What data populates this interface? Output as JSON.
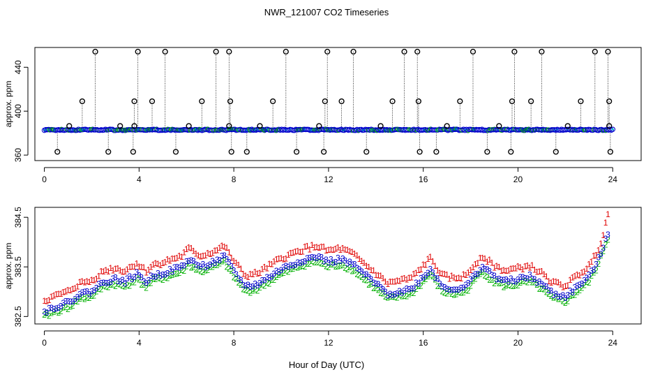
{
  "figure": {
    "title": "NWR_121007  CO2 Timeseries",
    "xlabel": "Hour of Day (UTC)"
  },
  "colors": {
    "axis": "#000000",
    "background": "#ffffff",
    "series1": "#e00000",
    "series2": "#00b000",
    "series3": "#0000cc",
    "mean_fill": "#00d0d0",
    "outlier": "#000000"
  },
  "chart_data": [
    {
      "type": "scatter",
      "panel": "top",
      "title": "",
      "ylabel": "approx. ppm",
      "xlim": [
        -0.4,
        25.2
      ],
      "ylim": [
        355,
        458
      ],
      "xticks": [
        0,
        4,
        8,
        12,
        16,
        20,
        24
      ],
      "yticks": [
        360,
        400,
        440
      ],
      "baseline": 383,
      "x_range": [
        0,
        24
      ],
      "high_outliers": [
        2.15,
        3.95,
        5.1,
        7.25,
        7.8,
        10.2,
        11.95,
        13.05,
        15.2,
        15.75,
        18.1,
        19.85,
        21.0,
        23.25,
        23.8
      ],
      "mid_outliers": [
        1.6,
        3.8,
        4.55,
        6.65,
        7.85,
        9.65,
        11.85,
        12.55,
        14.7,
        15.8,
        17.55,
        19.75,
        20.55,
        22.65,
        23.85
      ],
      "low_outliers": [
        0.55,
        2.7,
        3.75,
        5.55,
        7.9,
        8.55,
        10.65,
        11.8,
        13.6,
        15.85,
        16.55,
        18.7,
        19.7,
        21.6,
        23.9
      ],
      "near_outliers": [
        1.05,
        3.2,
        3.8,
        6.1,
        7.8,
        9.1,
        11.6,
        14.2,
        17.0,
        19.2,
        22.1,
        23.85
      ]
    },
    {
      "type": "scatter",
      "panel": "bottom",
      "title": "",
      "ylabel": "approx. ppm",
      "xlim": [
        -0.4,
        25.2
      ],
      "ylim": [
        382.35,
        384.7
      ],
      "xticks": [
        0,
        4,
        8,
        12,
        16,
        20,
        24
      ],
      "yticks": [
        382.5,
        383.5,
        384.5
      ],
      "series": [
        {
          "name": "1",
          "offset": 0.22
        },
        {
          "name": "2",
          "offset": -0.1
        },
        {
          "name": "3",
          "offset": 0.0
        }
      ],
      "x_range": [
        0,
        23.85
      ],
      "step_hours": 0.1,
      "anchors": [
        [
          0.0,
          382.6
        ],
        [
          0.5,
          382.7
        ],
        [
          1.0,
          382.78
        ],
        [
          1.5,
          382.95
        ],
        [
          2.0,
          383.0
        ],
        [
          2.5,
          383.2
        ],
        [
          3.0,
          383.25
        ],
        [
          3.4,
          383.2
        ],
        [
          3.9,
          383.35
        ],
        [
          4.3,
          383.2
        ],
        [
          4.6,
          383.32
        ],
        [
          5.2,
          383.4
        ],
        [
          5.8,
          383.5
        ],
        [
          6.1,
          383.65
        ],
        [
          6.6,
          383.5
        ],
        [
          7.2,
          383.6
        ],
        [
          7.6,
          383.7
        ],
        [
          8.0,
          383.4
        ],
        [
          8.5,
          383.1
        ],
        [
          9.0,
          383.15
        ],
        [
          9.5,
          383.3
        ],
        [
          10.0,
          383.45
        ],
        [
          10.5,
          383.55
        ],
        [
          11.0,
          383.65
        ],
        [
          11.5,
          383.7
        ],
        [
          12.0,
          383.6
        ],
        [
          12.5,
          383.65
        ],
        [
          13.0,
          383.55
        ],
        [
          13.5,
          383.35
        ],
        [
          14.0,
          383.15
        ],
        [
          14.5,
          382.95
        ],
        [
          15.0,
          383.0
        ],
        [
          15.5,
          383.05
        ],
        [
          16.0,
          383.3
        ],
        [
          16.3,
          383.45
        ],
        [
          16.8,
          383.1
        ],
        [
          17.3,
          383.05
        ],
        [
          17.8,
          383.1
        ],
        [
          18.2,
          383.35
        ],
        [
          18.5,
          383.5
        ],
        [
          19.0,
          383.3
        ],
        [
          19.5,
          383.2
        ],
        [
          20.0,
          383.25
        ],
        [
          20.5,
          383.3
        ],
        [
          21.0,
          383.15
        ],
        [
          21.5,
          382.95
        ],
        [
          22.0,
          382.9
        ],
        [
          22.5,
          383.1
        ],
        [
          23.0,
          383.3
        ],
        [
          23.4,
          383.65
        ],
        [
          23.7,
          384.05
        ],
        [
          23.85,
          384.15
        ]
      ]
    }
  ]
}
